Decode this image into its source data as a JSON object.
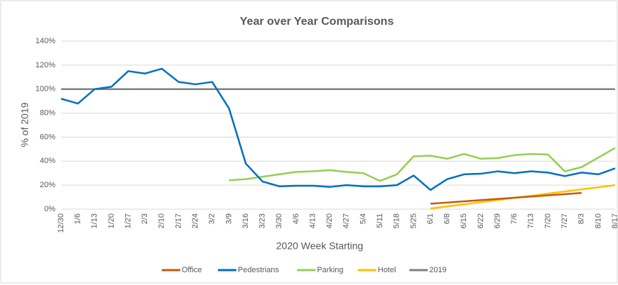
{
  "chart_data": {
    "type": "line",
    "title": "Year over Year Comparisons",
    "x_label": "2020 Week Starting",
    "y_label": "% of 2019",
    "categories": [
      "12/30",
      "1/6",
      "1/13",
      "1/20",
      "1/27",
      "2/3",
      "2/10",
      "2/17",
      "2/24",
      "3/2",
      "3/9",
      "3/16",
      "3/23",
      "3/30",
      "4/6",
      "4/13",
      "4/20",
      "4/27",
      "5/4",
      "5/11",
      "5/18",
      "5/25",
      "6/1",
      "6/8",
      "6/15",
      "6/22",
      "6/29",
      "7/6",
      "7/13",
      "7/20",
      "7/27",
      "8/3",
      "8/10",
      "8/17"
    ],
    "series": [
      {
        "name": "Office",
        "color": "#c55a11",
        "values": [
          null,
          null,
          null,
          null,
          null,
          null,
          null,
          null,
          null,
          null,
          null,
          null,
          null,
          null,
          null,
          null,
          null,
          null,
          null,
          null,
          null,
          null,
          4.5,
          5.5,
          6.5,
          7.5,
          8.5,
          9.5,
          10.5,
          11.5,
          12.5,
          13.5,
          null,
          null
        ]
      },
      {
        "name": "Pedestrians",
        "color": "#0070c0",
        "values": [
          92,
          88,
          100,
          102,
          115,
          113,
          117,
          106,
          104,
          106,
          84,
          38,
          23,
          19,
          19.5,
          19.5,
          18.5,
          20,
          19,
          19,
          20,
          28,
          16,
          25,
          29,
          29.5,
          31.5,
          30,
          31.5,
          30.5,
          27.5,
          30.5,
          29,
          34
        ]
      },
      {
        "name": "Parking",
        "color": "#92d050",
        "values": [
          null,
          null,
          null,
          null,
          null,
          null,
          null,
          null,
          null,
          null,
          24,
          25,
          27,
          29,
          31,
          31.5,
          32.5,
          31,
          30,
          23.5,
          29,
          44,
          44.5,
          42,
          46,
          42,
          42.5,
          45,
          46,
          45.5,
          31.5,
          35,
          43,
          51
        ]
      },
      {
        "name": "Hotel",
        "color": "#ffc000",
        "values": [
          null,
          null,
          null,
          null,
          null,
          null,
          null,
          null,
          null,
          null,
          null,
          null,
          null,
          null,
          null,
          null,
          null,
          null,
          null,
          null,
          null,
          null,
          0.5,
          2.3,
          4,
          5.8,
          7.6,
          9.4,
          11.1,
          12.9,
          14.7,
          16.5,
          18.2,
          20
        ]
      },
      {
        "name": "2019",
        "color": "#7f7f7f",
        "values": [
          100,
          100,
          100,
          100,
          100,
          100,
          100,
          100,
          100,
          100,
          100,
          100,
          100,
          100,
          100,
          100,
          100,
          100,
          100,
          100,
          100,
          100,
          100,
          100,
          100,
          100,
          100,
          100,
          100,
          100,
          100,
          100,
          100,
          100
        ]
      }
    ],
    "ylim": [
      0,
      140
    ],
    "yticks": [
      {
        "value": 0,
        "label": "0%"
      },
      {
        "value": 20,
        "label": "20%"
      },
      {
        "value": 40,
        "label": "40%"
      },
      {
        "value": 60,
        "label": "60%"
      },
      {
        "value": 80,
        "label": "80%"
      },
      {
        "value": 100,
        "label": "100%"
      },
      {
        "value": 120,
        "label": "120%"
      },
      {
        "value": 140,
        "label": "140%"
      }
    ],
    "grid": true,
    "legend": "bottom"
  }
}
